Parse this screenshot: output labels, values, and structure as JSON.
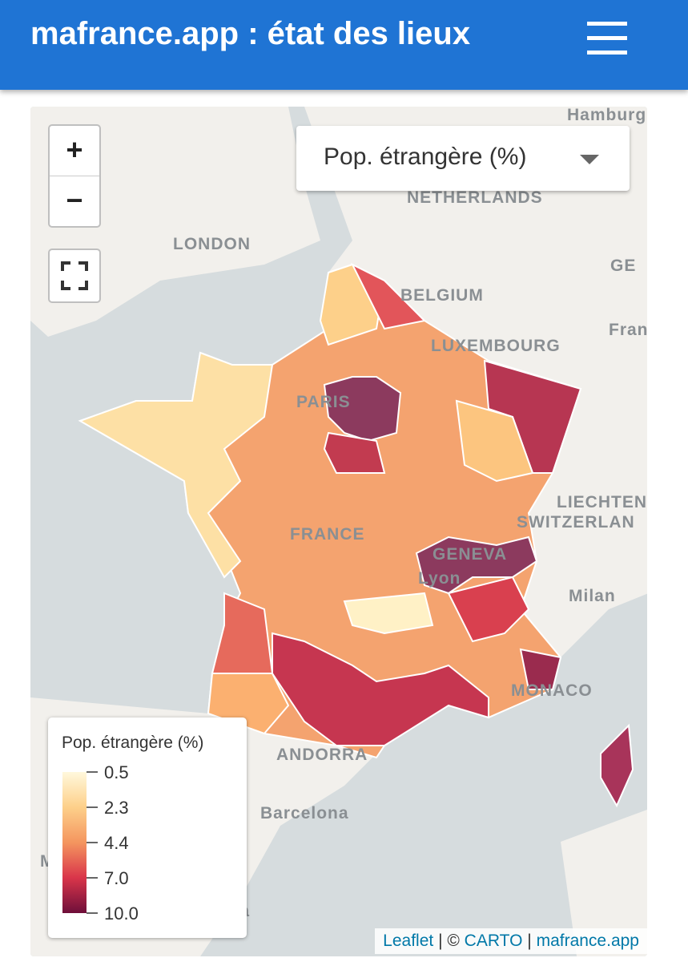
{
  "header": {
    "title": "mafrance.app : état des lieux"
  },
  "map": {
    "selector": "Pop. étrangère (%)",
    "zoom_in": "+",
    "zoom_out": "−",
    "place_labels": [
      "Hamburg",
      "NETHERLANDS",
      "LONDON",
      "GE",
      "BELGIUM",
      "Franl",
      "LUXEMBOURG",
      "PARIS",
      "LIECHTEN",
      "SWITZERLAN",
      "FRANCE",
      "GENEVA",
      "Lyon",
      "Milan",
      "MONACO",
      "ANDORRA",
      "Barcelona",
      "MADRID",
      "Valencia"
    ],
    "legend": {
      "title": "Pop. étrangère (%)",
      "stops": [
        {
          "value": 0.5,
          "label": "0.5",
          "color": "#fff8dc"
        },
        {
          "value": 2.3,
          "label": "2.3",
          "color": "#fdd08a"
        },
        {
          "value": 4.4,
          "label": "4.4",
          "color": "#f4955f"
        },
        {
          "value": 7,
          "label": "7.0",
          "color": "#d9354a"
        },
        {
          "value": 10,
          "label": "10.0",
          "color": "#6e0f3a"
        }
      ]
    },
    "attribution": [
      "Leaflet",
      "| ©",
      "CARTO",
      "|",
      "mafrance.app"
    ]
  }
}
